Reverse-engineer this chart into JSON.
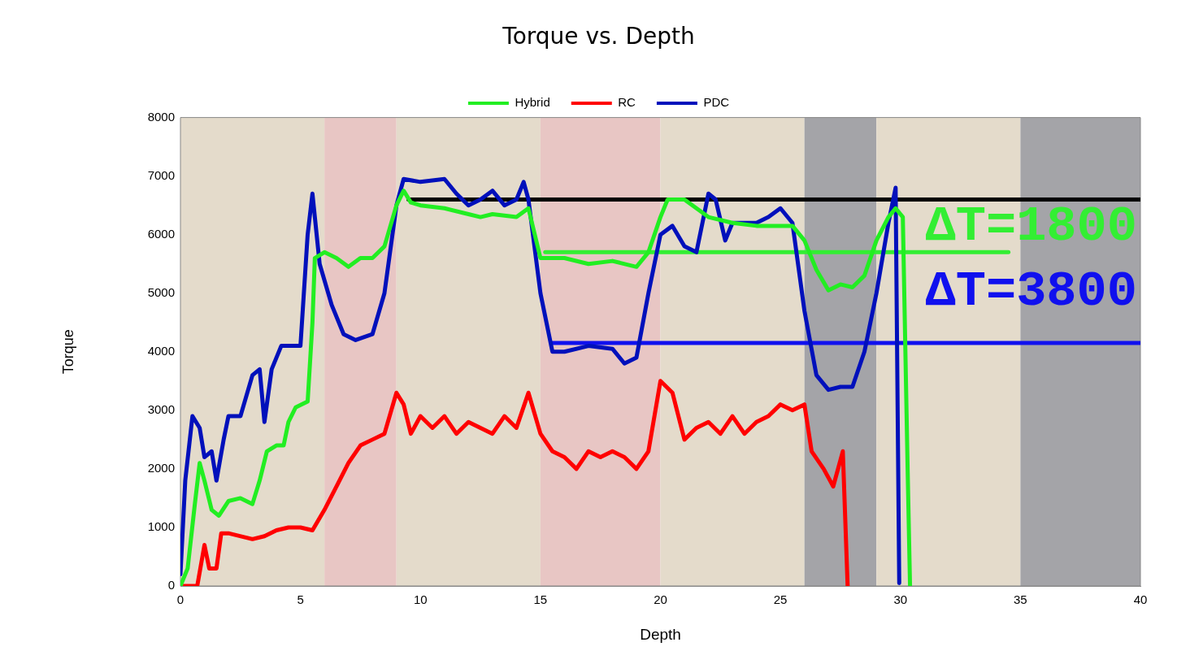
{
  "chart_data": {
    "type": "line",
    "title": "Torque vs. Depth",
    "xlabel": "Depth",
    "ylabel": "Torque",
    "xlim": [
      0,
      40
    ],
    "xticks": [
      0,
      5,
      10,
      15,
      20,
      25,
      30,
      35,
      40
    ],
    "ylim": [
      0,
      8000
    ],
    "yticks": [
      0,
      1000,
      2000,
      3000,
      4000,
      5000,
      6000,
      7000,
      8000
    ],
    "legend": "top",
    "marker": "none",
    "line_style": "solid",
    "bands": [
      {
        "axis": "x",
        "from": 0,
        "to": 6,
        "color": "#e4dbcb"
      },
      {
        "axis": "x",
        "from": 6,
        "to": 9,
        "color": "#e8c6c4"
      },
      {
        "axis": "x",
        "from": 9,
        "to": 15,
        "color": "#e4dbcb"
      },
      {
        "axis": "x",
        "from": 15,
        "to": 20,
        "color": "#e8c6c4"
      },
      {
        "axis": "x",
        "from": 20,
        "to": 26,
        "color": "#e4dbcb"
      },
      {
        "axis": "x",
        "from": 26,
        "to": 29,
        "color": "#a4a4a8"
      },
      {
        "axis": "x",
        "from": 29,
        "to": 35,
        "color": "#e4dbcb"
      },
      {
        "axis": "x",
        "from": 35,
        "to": 40,
        "color": "#a4a4a8"
      }
    ],
    "series": [
      {
        "name": "Hybrid",
        "color": "#22ee22",
        "x": [
          0,
          0.3,
          0.6,
          0.8,
          1,
          1.3,
          1.6,
          2,
          2.5,
          3,
          3.3,
          3.6,
          4,
          4.3,
          4.5,
          4.8,
          5.3,
          5.5,
          5.6,
          6,
          6.5,
          7,
          7.5,
          8,
          8.5,
          9,
          9.3,
          9.6,
          10,
          11,
          12,
          12.5,
          13,
          14,
          14.5,
          15,
          16,
          17,
          18,
          19,
          19.5,
          20,
          20.3,
          21,
          21.5,
          22,
          23,
          24,
          25,
          25.5,
          26,
          26.5,
          27,
          27.5,
          28,
          28.5,
          29,
          29.5,
          29.8,
          30.1,
          30.3,
          30.4
        ],
        "values": [
          0,
          300,
          1400,
          2100,
          1800,
          1300,
          1200,
          1450,
          1500,
          1400,
          1800,
          2300,
          2400,
          2400,
          2800,
          3050,
          3150,
          4500,
          5600,
          5700,
          5600,
          5450,
          5600,
          5600,
          5800,
          6500,
          6750,
          6550,
          6500,
          6450,
          6350,
          6300,
          6350,
          6300,
          6450,
          5600,
          5600,
          5500,
          5550,
          5450,
          5700,
          6300,
          6600,
          6600,
          6450,
          6300,
          6200,
          6150,
          6150,
          6150,
          5900,
          5400,
          5050,
          5150,
          5100,
          5300,
          5900,
          6300,
          6450,
          6300,
          2000,
          0
        ]
      },
      {
        "name": "RC",
        "color": "#ff0000",
        "x": [
          0,
          0.7,
          1,
          1.2,
          1.5,
          1.7,
          2,
          3,
          3.5,
          4,
          4.5,
          5,
          5.5,
          6,
          6.5,
          7,
          7.5,
          8,
          8.5,
          9,
          9.3,
          9.6,
          10,
          10.5,
          11,
          11.5,
          12,
          12.5,
          13,
          13.5,
          14,
          14.5,
          15,
          15.5,
          16,
          16.5,
          17,
          17.5,
          18,
          18.5,
          19,
          19.5,
          20,
          20.5,
          21,
          21.5,
          22,
          22.5,
          23,
          23.5,
          24,
          24.5,
          25,
          25.5,
          26,
          26.3,
          26.8,
          27.2,
          27.6,
          27.8
        ],
        "values": [
          0,
          0,
          700,
          300,
          300,
          900,
          900,
          800,
          850,
          950,
          1000,
          1000,
          950,
          1300,
          1700,
          2100,
          2400,
          2500,
          2600,
          3300,
          3100,
          2600,
          2900,
          2700,
          2900,
          2600,
          2800,
          2700,
          2600,
          2900,
          2700,
          3300,
          2600,
          2300,
          2200,
          2000,
          2300,
          2200,
          2300,
          2200,
          2000,
          2300,
          3500,
          3300,
          2500,
          2700,
          2800,
          2600,
          2900,
          2600,
          2800,
          2900,
          3100,
          3000,
          3100,
          2300,
          2000,
          1700,
          2300,
          0
        ]
      },
      {
        "name": "PDC",
        "color": "#0010bb",
        "x": [
          0,
          0.2,
          0.5,
          0.8,
          1,
          1.3,
          1.5,
          1.8,
          2,
          2.5,
          3,
          3.3,
          3.5,
          3.8,
          4.2,
          4.6,
          5,
          5.3,
          5.5,
          5.8,
          6.3,
          6.8,
          7.3,
          8,
          8.5,
          9,
          9.3,
          10,
          11,
          11.5,
          12,
          12.5,
          13,
          13.5,
          14,
          14.3,
          14.5,
          15,
          15.5,
          16,
          17,
          18,
          18.5,
          19,
          19.5,
          20,
          20.5,
          21,
          21.5,
          22,
          22.3,
          22.7,
          23,
          23.5,
          24,
          24.5,
          25,
          25.5,
          26,
          26.5,
          27,
          27.5,
          28,
          28.5,
          29,
          29.5,
          29.8,
          29.95
        ],
        "values": [
          200,
          1800,
          2900,
          2700,
          2200,
          2300,
          1800,
          2500,
          2900,
          2900,
          3600,
          3700,
          2800,
          3700,
          4100,
          4100,
          4100,
          6000,
          6700,
          5500,
          4800,
          4300,
          4200,
          4300,
          5000,
          6500,
          6950,
          6900,
          6950,
          6700,
          6500,
          6600,
          6750,
          6500,
          6600,
          6900,
          6600,
          5000,
          4000,
          4000,
          4100,
          4050,
          3800,
          3900,
          5000,
          6000,
          6150,
          5800,
          5700,
          6700,
          6600,
          5900,
          6200,
          6200,
          6200,
          6300,
          6450,
          6200,
          4700,
          3600,
          3350,
          3400,
          3400,
          4000,
          5000,
          6200,
          6800,
          50
        ]
      },
      {
        "color": "#000000",
        "x": [
          9.5,
          40
        ],
        "values": [
          6600,
          6600
        ]
      },
      {
        "color": "#33ee33",
        "x": [
          15.2,
          34.5
        ],
        "values": [
          5700,
          5700
        ]
      },
      {
        "color": "#1010ee",
        "x": [
          15.5,
          40
        ],
        "values": [
          4150,
          4150
        ]
      }
    ],
    "annotations": [
      "ΔT=1800",
      "ΔT=3800"
    ]
  }
}
